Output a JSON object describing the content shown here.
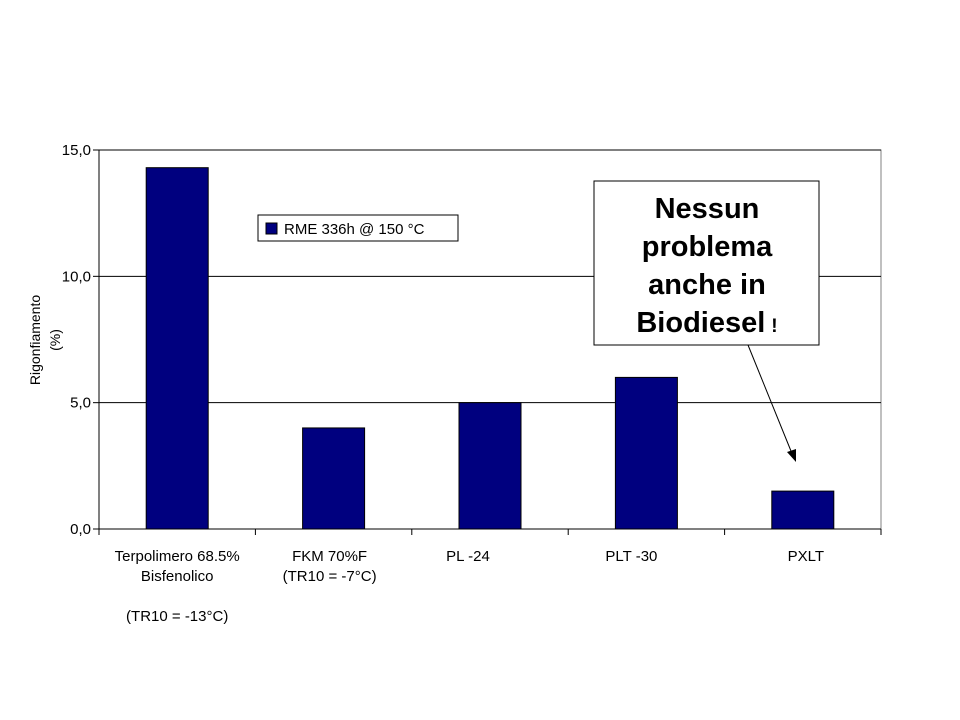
{
  "chart_data": {
    "type": "bar",
    "categories": [
      [
        "Terpolimero 68.5%",
        "Bisfenolico",
        "",
        "(TR10 = -13°C)"
      ],
      [
        "FKM 70%F",
        "(TR10 = -7°C)"
      ],
      [
        "PL -24"
      ],
      [
        "PLT -30"
      ],
      [
        "PXLT"
      ]
    ],
    "series": [
      {
        "name": "RME 336h @ 150 °C",
        "values": [
          14.3,
          4.0,
          5.0,
          6.0,
          1.5
        ],
        "color": "#00007F"
      }
    ],
    "ylabel_lines": [
      "Rigonfiamento",
      "(%)"
    ],
    "ylim": [
      0,
      15
    ],
    "yticks": [
      "0,0",
      "5,0",
      "10,0",
      "15,0"
    ],
    "grid": true,
    "legend_position": "top-left",
    "annotation": {
      "lines": [
        "Nessun",
        "problema",
        "anche in",
        "Biodiesel"
      ],
      "suffix": "!",
      "points_to": "PXLT"
    }
  }
}
